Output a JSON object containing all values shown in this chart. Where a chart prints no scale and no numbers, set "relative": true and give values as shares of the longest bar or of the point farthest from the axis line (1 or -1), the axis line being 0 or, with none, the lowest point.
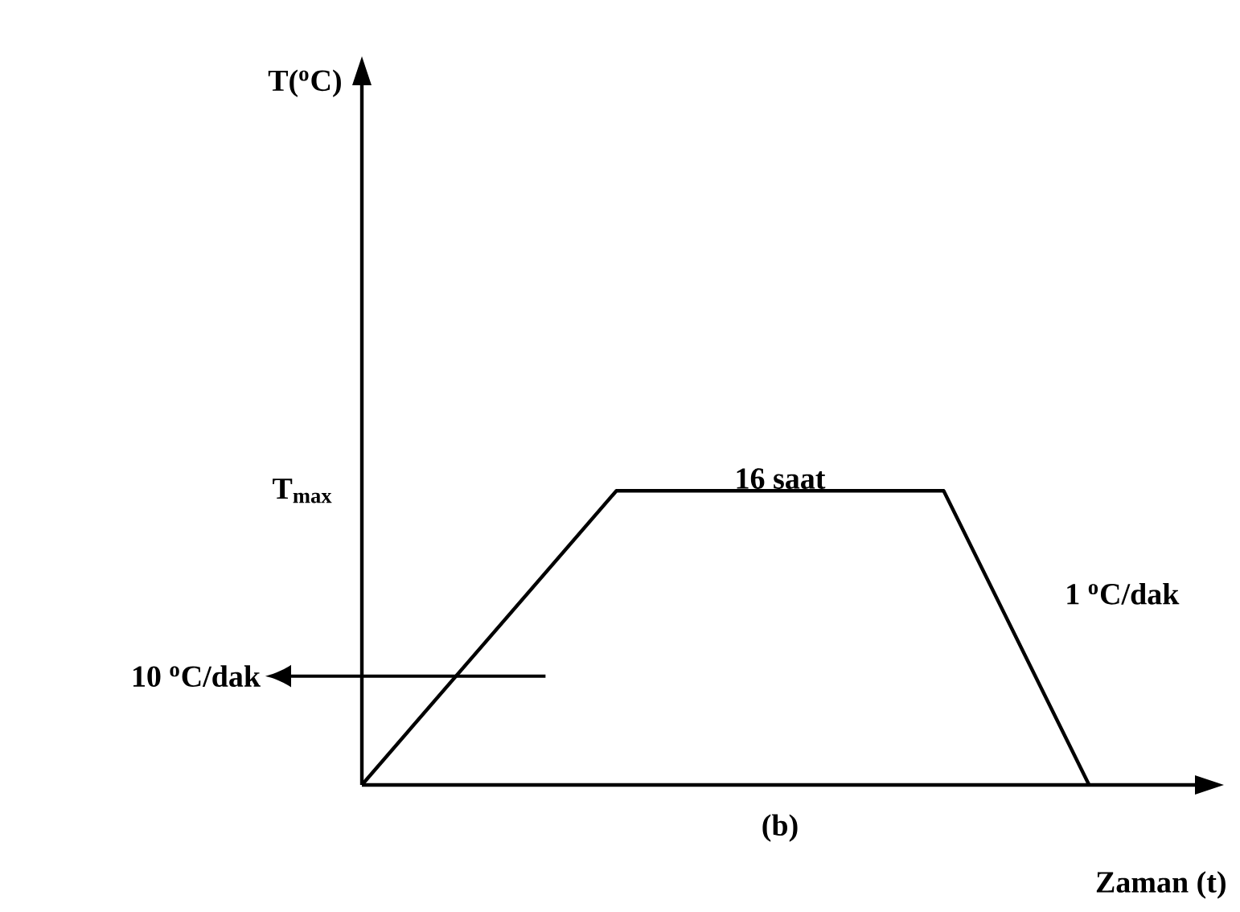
{
  "chart_data": {
    "type": "line",
    "relative": true,
    "xlabel": "Zaman (t)",
    "categories": [
      null,
      null,
      null,
      null,
      null,
      null,
      null,
      null,
      null,
      null,
      null,
      null,
      null,
      null,
      null,
      null,
      null,
      null,
      null,
      null,
      null,
      null,
      null,
      null
    ],
    "marker": "none",
    "line_style": "solid",
    "series": [
      {
        "color": "#000000",
        "values": [
          0,
          null,
          null,
          null,
          null,
          null,
          null,
          1,
          null,
          null,
          null,
          null,
          null,
          null,
          null,
          null,
          1,
          null,
          null,
          null,
          0,
          null,
          null,
          null
        ]
      }
    ],
    "annotations": [
      "T$_{max}$",
      "16 saat",
      "1 $^{o}$C/dak",
      "10 $^{o}$C/dak",
      "(b)",
      "T($^{o}$C)"
    ]
  }
}
